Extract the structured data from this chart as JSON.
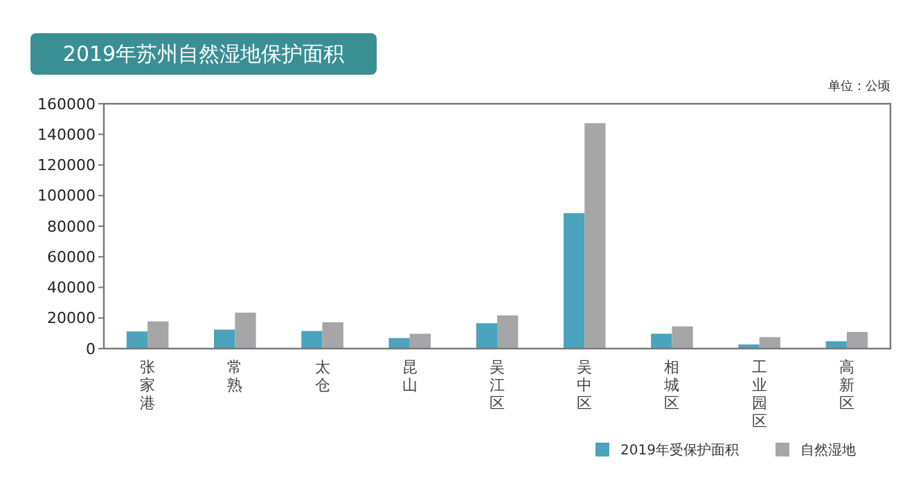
{
  "chart_data": {
    "type": "bar",
    "title": "2019年苏州自然湿地保护面积",
    "annotations": [
      "单位：公顷"
    ],
    "categories": [
      "张家港",
      "常熟",
      "太仓",
      "昆山",
      "吴江区",
      "吴中区",
      "相城区",
      "工业园区",
      "高新区"
    ],
    "series": [
      {
        "name": "2019年受保护面积",
        "color": "#4ba3bd",
        "values": [
          11200,
          12400,
          11500,
          6900,
          16600,
          88500,
          9700,
          2700,
          4800
        ]
      },
      {
        "name": "自然湿地",
        "color": "#a6a6a8",
        "values": [
          17800,
          23500,
          17200,
          9700,
          21700,
          147300,
          14500,
          7500,
          10900
        ]
      }
    ],
    "ylim": [
      0,
      160000
    ],
    "yticks": [
      0,
      20000,
      40000,
      60000,
      80000,
      100000,
      120000,
      140000,
      160000
    ],
    "grid": false,
    "legend": "bottom right"
  }
}
